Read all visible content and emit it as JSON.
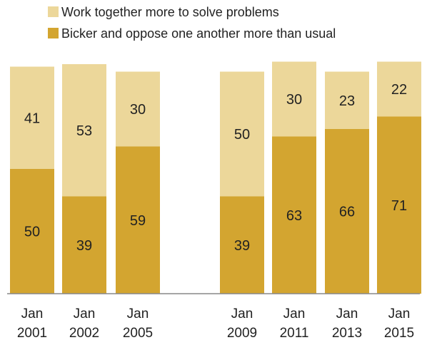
{
  "chart_data": {
    "type": "bar",
    "stacked": true,
    "categories": [
      [
        "Jan",
        "2001"
      ],
      [
        "Jan",
        "2002"
      ],
      [
        "Jan",
        "2005"
      ],
      [
        "Jan",
        "2009"
      ],
      [
        "Jan",
        "2011"
      ],
      [
        "Jan",
        "2013"
      ],
      [
        "Jan",
        "2015"
      ]
    ],
    "series": [
      {
        "name": "Bicker and oppose one another more than usual",
        "values": [
          50,
          39,
          59,
          39,
          63,
          66,
          71
        ],
        "color": "#d3a530"
      },
      {
        "name": "Work together more to solve problems",
        "values": [
          41,
          53,
          30,
          50,
          30,
          23,
          22
        ],
        "color": "#ecd79a"
      }
    ],
    "legend": {
      "placement": "top",
      "entries": [
        {
          "label": "Work together more to solve problems",
          "color": "#ecd79a"
        },
        {
          "label": "Bicker and oppose one another more than usual",
          "color": "#d3a530"
        }
      ]
    },
    "ylim": [
      0,
      100
    ],
    "grid": false,
    "title": "",
    "xlabel": "",
    "ylabel": ""
  }
}
